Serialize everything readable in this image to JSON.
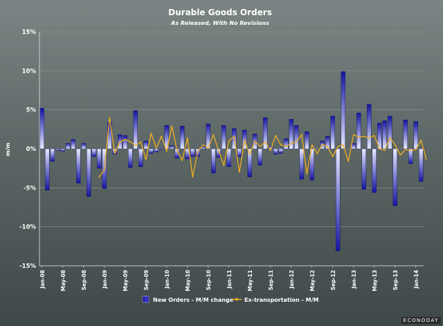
{
  "chart_data": {
    "type": "bar",
    "title": "Durable Goods Orders",
    "subtitle": "As Released, With No Revisions",
    "ylabel": "m/m",
    "ylim": [
      -15,
      15
    ],
    "yticks": [
      15,
      10,
      5,
      0,
      -5,
      -10,
      -15
    ],
    "ytick_labels": [
      "15%",
      "10%",
      "5%",
      "0%",
      "-5%",
      "-10%",
      "-15%"
    ],
    "x_tick_labels": [
      {
        "index": 0,
        "label": "Jan-08"
      },
      {
        "index": 4,
        "label": "May-08"
      },
      {
        "index": 8,
        "label": "Sep-08"
      },
      {
        "index": 12,
        "label": "Jan-09"
      },
      {
        "index": 16,
        "label": "May-09"
      },
      {
        "index": 20,
        "label": "Sep-09"
      },
      {
        "index": 24,
        "label": "Jan-10"
      },
      {
        "index": 28,
        "label": "May-10"
      },
      {
        "index": 32,
        "label": "Sep-10"
      },
      {
        "index": 36,
        "label": "Jan-11"
      },
      {
        "index": 40,
        "label": "May-11"
      },
      {
        "index": 44,
        "label": "Sep-11"
      },
      {
        "index": 48,
        "label": "Jan-12"
      },
      {
        "index": 52,
        "label": "May-12"
      },
      {
        "index": 56,
        "label": "Sep-12"
      },
      {
        "index": 60,
        "label": "Jan-13"
      },
      {
        "index": 64,
        "label": "May-13"
      },
      {
        "index": 68,
        "label": "Sep-13"
      },
      {
        "index": 72,
        "label": "Jan-14"
      }
    ],
    "series": [
      {
        "name": "New Orders - M/M change",
        "kind": "bar",
        "color": "#1a1aa0",
        "values": [
          5.2,
          -5.3,
          -1.6,
          -0.2,
          -0.3,
          0.7,
          1.2,
          -4.4,
          0.7,
          -6.1,
          -1.0,
          -2.5,
          -5.1,
          3.4,
          -0.7,
          1.8,
          1.7,
          -2.4,
          4.9,
          -2.3,
          1.0,
          -0.6,
          -0.4,
          -0.1,
          3.0,
          0.4,
          -1.2,
          2.9,
          -1.3,
          -1.0,
          -1.0,
          0.3,
          3.2,
          -3.1,
          -1.1,
          3.0,
          -2.3,
          2.6,
          -1.0,
          2.4,
          -3.6,
          1.9,
          -2.1,
          4.0,
          0.3,
          -0.7,
          -0.6,
          1.3,
          3.8,
          3.0,
          -3.9,
          2.2,
          -4.0,
          0.0,
          1.0,
          1.6,
          4.2,
          -13.1,
          9.9,
          0.0,
          0.7,
          4.6,
          -5.2,
          5.7,
          -5.6,
          3.3,
          3.6,
          4.2,
          -7.3,
          0.0,
          3.7,
          -1.9,
          3.5,
          -4.2
        ]
      },
      {
        "name": "Ex-transportation - M/M",
        "kind": "line",
        "color": "#f0b020",
        "start_index": 11,
        "values": [
          -3.6,
          -2.7,
          4.0,
          -0.6,
          0.9,
          1.2,
          0.9,
          0.4,
          0.9,
          -1.4,
          2.0,
          0.1,
          1.6,
          -0.3,
          2.9,
          -0.2,
          -1.5,
          1.4,
          -3.6,
          -0.3,
          0.5,
          0.1,
          1.8,
          -0.2,
          -2.1,
          1.0,
          1.6,
          -3.0,
          1.1,
          -0.7,
          1.0,
          0.3,
          0.9,
          -0.2,
          1.7,
          0.5,
          0.3,
          0.7,
          0.9,
          1.8,
          -3.2,
          0.5,
          -0.6,
          0.6,
          0.2,
          -1.0,
          0.3,
          0.5,
          -1.6,
          1.8,
          1.5,
          1.6,
          1.4,
          1.7,
          0.0,
          -0.2,
          1.4,
          0.5,
          -0.8,
          -0.1,
          -0.2,
          -0.1,
          1.1,
          -1.3
        ]
      }
    ],
    "legend": [
      {
        "label": "New Orders - M/M change",
        "marker": "bar-icon"
      },
      {
        "label": "Ex-transportation - M/M",
        "marker": "line-icon"
      }
    ],
    "legend_position": "bottom",
    "grid": true,
    "brand": "ECONODAY"
  }
}
